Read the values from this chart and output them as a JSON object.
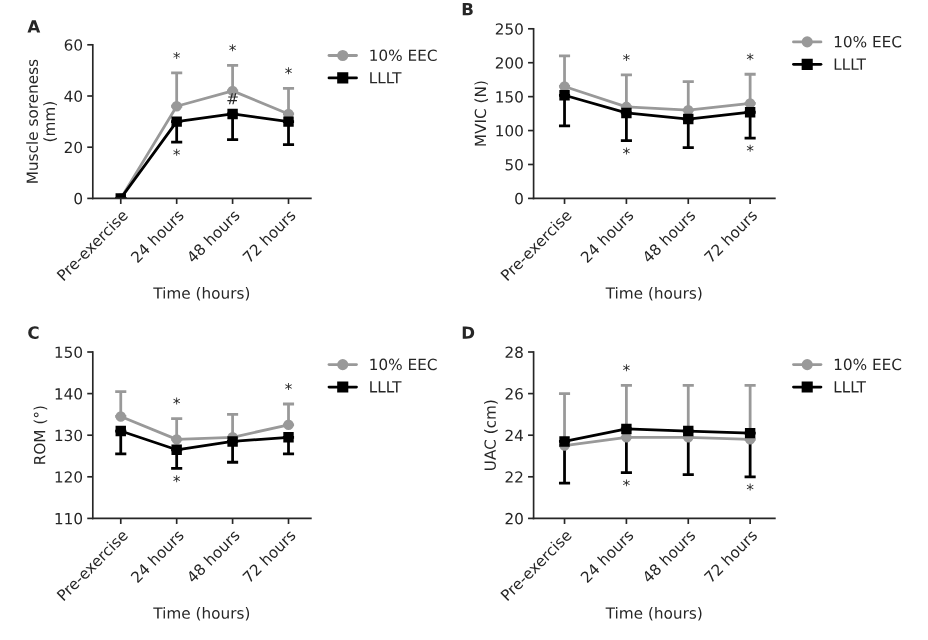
{
  "chart_data": [
    {
      "type": "line",
      "title": "A",
      "xlabel": "Time (hours)",
      "ylabel": "Muscle soreness\n(mm)",
      "categories": [
        "Pre-exercise",
        "24 hours",
        "48 hours",
        "72 hours"
      ],
      "ylim": [
        0,
        60
      ],
      "yticks": [
        0,
        20,
        40,
        60
      ],
      "legend": "right",
      "grid": false,
      "series": [
        {
          "name": "10% EEC",
          "color": "#999999",
          "marker": "circle",
          "values": [
            0,
            36,
            42,
            33
          ],
          "errors": [
            null,
            [
              36,
              49
            ],
            [
              42,
              52
            ],
            [
              33,
              43
            ]
          ]
        },
        {
          "name": "LLLT",
          "color": "#000000",
          "marker": "square",
          "values": [
            0,
            30,
            33,
            30
          ],
          "errors": [
            null,
            [
              22,
              30
            ],
            [
              23,
              33
            ],
            [
              21,
              30
            ]
          ]
        }
      ],
      "annotations": [
        {
          "text": "*",
          "x": "24 hours",
          "y": 49
        },
        {
          "text": "*",
          "x": "48 hours",
          "y": 52
        },
        {
          "text": "*",
          "x": "72 hours",
          "y": 43
        },
        {
          "text": "#",
          "x": "48 hours",
          "y": 33
        },
        {
          "text": "*",
          "x": "24 hours",
          "y": 22
        }
      ]
    },
    {
      "type": "line",
      "title": "B",
      "xlabel": "Time (hours)",
      "ylabel": "MVIC (N)",
      "categories": [
        "Pre-exercise",
        "24 hours",
        "48 hours",
        "72 hours"
      ],
      "ylim": [
        0,
        250
      ],
      "yticks": [
        0,
        50,
        100,
        150,
        200,
        250
      ],
      "legend": "right",
      "grid": false,
      "series": [
        {
          "name": "10% EEC",
          "color": "#999999",
          "marker": "circle",
          "values": [
            165,
            135,
            130,
            140
          ],
          "errors": [
            [
              165,
              210
            ],
            [
              135,
              182
            ],
            [
              130,
              172
            ],
            [
              140,
              183
            ]
          ]
        },
        {
          "name": "LLLT",
          "color": "#000000",
          "marker": "square",
          "values": [
            152,
            126,
            117,
            127
          ],
          "errors": [
            [
              107,
              152
            ],
            [
              85,
              126
            ],
            [
              75,
              117
            ],
            [
              89,
              127
            ]
          ]
        }
      ],
      "annotations": [
        {
          "text": "*",
          "x": "24 hours",
          "y": 182
        },
        {
          "text": "*",
          "x": "24 hours",
          "y": 85
        },
        {
          "text": "*",
          "x": "72 hours",
          "y": 183
        },
        {
          "text": "*",
          "x": "72 hours",
          "y": 89
        }
      ]
    },
    {
      "type": "line",
      "title": "C",
      "xlabel": "Time (hours)",
      "ylabel": "ROM (°)",
      "categories": [
        "Pre-exercise",
        "24 hours",
        "48 hours",
        "72 hours"
      ],
      "ylim": [
        110,
        150
      ],
      "yticks": [
        110,
        120,
        130,
        140,
        150
      ],
      "legend": "right",
      "grid": false,
      "series": [
        {
          "name": "10% EEC",
          "color": "#999999",
          "marker": "circle",
          "values": [
            134.5,
            129,
            129.5,
            132.5
          ],
          "errors": [
            [
              134.5,
              140.5
            ],
            [
              129,
              134
            ],
            [
              129.5,
              135
            ],
            [
              132.5,
              137.5
            ]
          ]
        },
        {
          "name": "LLLT",
          "color": "#000000",
          "marker": "square",
          "values": [
            131,
            126.5,
            128.5,
            129.5
          ],
          "errors": [
            [
              125.5,
              131
            ],
            [
              122,
              126.5
            ],
            [
              123.5,
              128.5
            ],
            [
              125.5,
              129.5
            ]
          ]
        }
      ],
      "annotations": [
        {
          "text": "*",
          "x": "24 hours",
          "y": 134
        },
        {
          "text": "*",
          "x": "24 hours",
          "y": 122
        },
        {
          "text": "*",
          "x": "72 hours",
          "y": 137.5
        }
      ]
    },
    {
      "type": "line",
      "title": "D",
      "xlabel": "Time (hours)",
      "ylabel": "UAC (cm)",
      "categories": [
        "Pre-exercise",
        "24 hours",
        "48 hours",
        "72 hours"
      ],
      "ylim": [
        20,
        28
      ],
      "yticks": [
        20,
        22,
        24,
        26,
        28
      ],
      "legend": "right",
      "grid": false,
      "series": [
        {
          "name": "10% EEC",
          "color": "#999999",
          "marker": "circle",
          "values": [
            23.5,
            23.9,
            23.9,
            23.8
          ],
          "errors": [
            [
              23.5,
              26
            ],
            [
              23.9,
              26.4
            ],
            [
              23.9,
              26.4
            ],
            [
              23.8,
              26.4
            ]
          ]
        },
        {
          "name": "LLLT",
          "color": "#000000",
          "marker": "square",
          "values": [
            23.7,
            24.3,
            24.2,
            24.1
          ],
          "errors": [
            [
              21.7,
              23.7
            ],
            [
              22.2,
              24.3
            ],
            [
              22.1,
              24.2
            ],
            [
              22.0,
              24.1
            ]
          ]
        }
      ],
      "annotations": [
        {
          "text": "*",
          "x": "24 hours",
          "y": 26.4
        },
        {
          "text": "*",
          "x": "24 hours",
          "y": 22.2
        },
        {
          "text": "*",
          "x": "72 hours",
          "y": 22.0
        }
      ]
    }
  ]
}
